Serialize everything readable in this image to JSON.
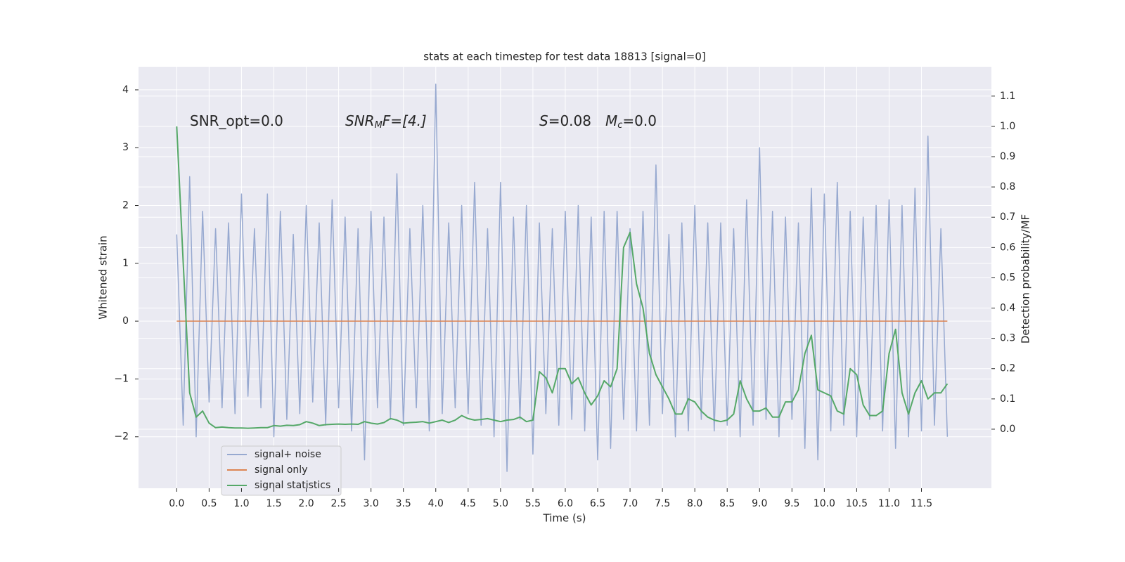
{
  "chart_data": {
    "type": "line",
    "title": "stats at each timestep for test data 18813 [signal=0]",
    "xlabel": "Time (s)",
    "ylabel": "Whitened strain",
    "y2label": "Detection probability/MF",
    "annotations": [
      [
        "SNR_opt=0.0"
      ],
      [
        "SNR",
        "M",
        "F=[4.]"
      ],
      [
        "S",
        "=0.08",
        "M",
        "c",
        "=0.0"
      ]
    ],
    "grid": true,
    "legend": "lower left",
    "xlim": [
      -0.59,
      12.58
    ],
    "ylim": [
      -2.89,
      4.4
    ],
    "y2lim": [
      -0.195,
      1.197
    ],
    "xticks": [
      {
        "value": 0,
        "label": "0.0"
      },
      {
        "value": 0.5,
        "label": "0.5"
      },
      {
        "value": 1,
        "label": "1.0"
      },
      {
        "value": 1.5,
        "label": "1.5"
      },
      {
        "value": 2,
        "label": "2.0"
      },
      {
        "value": 2.5,
        "label": "2.5"
      },
      {
        "value": 3,
        "label": "3.0"
      },
      {
        "value": 3.5,
        "label": "3.5"
      },
      {
        "value": 4,
        "label": "4.0"
      },
      {
        "value": 4.5,
        "label": "4.5"
      },
      {
        "value": 5,
        "label": "5.0"
      },
      {
        "value": 5.5,
        "label": "5.5"
      },
      {
        "value": 6,
        "label": "6.0"
      },
      {
        "value": 6.5,
        "label": "6.5"
      },
      {
        "value": 7,
        "label": "7.0"
      },
      {
        "value": 7.5,
        "label": "7.5"
      },
      {
        "value": 8,
        "label": "8.0"
      },
      {
        "value": 8.5,
        "label": "8.5"
      },
      {
        "value": 9,
        "label": "9.0"
      },
      {
        "value": 9.5,
        "label": "9.5"
      },
      {
        "value": 10,
        "label": "10.0"
      },
      {
        "value": 10.5,
        "label": "10.5"
      },
      {
        "value": 11,
        "label": "11.0"
      },
      {
        "value": 11.5,
        "label": "11.5"
      }
    ],
    "yticks": [
      {
        "value": -2,
        "label": "−2"
      },
      {
        "value": -1,
        "label": "−1"
      },
      0,
      1,
      2,
      3,
      4
    ],
    "y2ticks": [
      {
        "value": 0,
        "label": "0.0"
      },
      0.1,
      0.2,
      0.3,
      0.4,
      0.5,
      0.6,
      0.7,
      0.8,
      0.9,
      {
        "value": 1,
        "label": "1.0"
      },
      1.1
    ],
    "x": [
      0.0,
      0.1,
      0.2,
      0.3,
      0.4,
      0.5,
      0.6,
      0.7,
      0.8,
      0.9,
      1.0,
      1.1,
      1.2,
      1.3,
      1.4,
      1.5,
      1.6,
      1.7,
      1.8,
      1.9,
      2.0,
      2.1,
      2.2,
      2.3,
      2.4,
      2.5,
      2.6,
      2.7,
      2.8,
      2.9,
      3.0,
      3.1,
      3.2,
      3.3,
      3.4,
      3.5,
      3.6,
      3.7,
      3.8,
      3.9,
      4.0,
      4.1,
      4.2,
      4.3,
      4.4,
      4.5,
      4.6,
      4.7,
      4.8,
      4.9,
      5.0,
      5.1,
      5.2,
      5.3,
      5.4,
      5.5,
      5.6,
      5.7,
      5.8,
      5.9,
      6.0,
      6.1,
      6.2,
      6.3,
      6.4,
      6.5,
      6.6,
      6.7,
      6.8,
      6.9,
      7.0,
      7.1,
      7.2,
      7.3,
      7.4,
      7.5,
      7.6,
      7.7,
      7.8,
      7.9,
      8.0,
      8.1,
      8.2,
      8.3,
      8.4,
      8.5,
      8.6,
      8.7,
      8.8,
      8.9,
      9.0,
      9.1,
      9.2,
      9.3,
      9.4,
      9.5,
      9.6,
      9.7,
      9.8,
      9.9,
      10.0,
      10.1,
      10.2,
      10.3,
      10.4,
      10.5,
      10.6,
      10.7,
      10.8,
      10.9,
      11.0,
      11.1,
      11.2,
      11.3,
      11.4,
      11.5,
      11.6,
      11.7,
      11.8,
      11.9
    ],
    "series": [
      {
        "name": "signal+ noise",
        "color": "#97a9d0",
        "values": [
          1.5,
          -1.8,
          2.5,
          -2.0,
          1.9,
          -1.4,
          1.6,
          -1.5,
          1.7,
          -1.6,
          2.2,
          -1.3,
          1.6,
          -1.5,
          2.2,
          -2.0,
          1.9,
          -1.7,
          1.5,
          -1.6,
          2.0,
          -1.4,
          1.7,
          -1.8,
          2.1,
          -1.5,
          1.8,
          -1.9,
          1.6,
          -2.4,
          1.9,
          -1.5,
          1.8,
          -1.7,
          2.55,
          -1.8,
          1.6,
          -1.5,
          2.0,
          -1.9,
          4.1,
          -1.6,
          1.7,
          -1.5,
          2.0,
          -1.6,
          2.4,
          -1.8,
          1.6,
          -2.0,
          2.4,
          -2.6,
          1.8,
          -1.7,
          2.0,
          -2.3,
          1.7,
          -1.6,
          1.6,
          -1.8,
          1.9,
          -1.7,
          2.0,
          -1.9,
          1.8,
          -2.4,
          1.9,
          -2.2,
          1.9,
          -1.7,
          1.6,
          -1.9,
          1.9,
          -1.8,
          2.7,
          -1.6,
          1.5,
          -2.0,
          1.7,
          -1.9,
          2.0,
          -1.7,
          1.7,
          -1.9,
          1.7,
          -1.8,
          1.6,
          -2.0,
          2.1,
          -1.8,
          3.0,
          -1.7,
          1.9,
          -2.0,
          1.8,
          -1.7,
          1.7,
          -2.2,
          2.3,
          -2.4,
          2.2,
          -1.9,
          2.4,
          -1.8,
          1.9,
          -2.0,
          1.8,
          -1.7,
          2.0,
          -1.9,
          2.1,
          -2.2,
          2.0,
          -2.0,
          2.3,
          -1.9,
          3.2,
          -1.8,
          1.6,
          -2.0
        ]
      },
      {
        "name": "signal only",
        "color": "#dd8452",
        "x": [
          0.0,
          11.9
        ],
        "values": [
          0,
          0
        ]
      },
      {
        "name": "signal statistics",
        "color": "#55a868",
        "axis": "y2",
        "values": [
          1.0,
          0.55,
          0.12,
          0.04,
          0.06,
          0.02,
          0.005,
          0.007,
          0.005,
          0.004,
          0.004,
          0.003,
          0.004,
          0.005,
          0.005,
          0.012,
          0.01,
          0.013,
          0.012,
          0.015,
          0.025,
          0.02,
          0.012,
          0.015,
          0.016,
          0.017,
          0.016,
          0.017,
          0.016,
          0.025,
          0.02,
          0.017,
          0.022,
          0.035,
          0.03,
          0.02,
          0.022,
          0.023,
          0.025,
          0.02,
          0.025,
          0.03,
          0.022,
          0.03,
          0.045,
          0.035,
          0.03,
          0.032,
          0.035,
          0.03,
          0.025,
          0.03,
          0.032,
          0.04,
          0.025,
          0.03,
          0.19,
          0.17,
          0.12,
          0.2,
          0.2,
          0.15,
          0.17,
          0.12,
          0.08,
          0.11,
          0.16,
          0.14,
          0.2,
          0.6,
          0.65,
          0.48,
          0.4,
          0.25,
          0.18,
          0.14,
          0.1,
          0.05,
          0.05,
          0.1,
          0.09,
          0.06,
          0.04,
          0.03,
          0.025,
          0.03,
          0.05,
          0.16,
          0.1,
          0.06,
          0.06,
          0.07,
          0.04,
          0.04,
          0.09,
          0.09,
          0.13,
          0.25,
          0.31,
          0.13,
          0.12,
          0.11,
          0.06,
          0.05,
          0.2,
          0.18,
          0.08,
          0.045,
          0.045,
          0.06,
          0.25,
          0.33,
          0.12,
          0.05,
          0.12,
          0.16,
          0.1,
          0.12,
          0.12,
          0.15
        ]
      }
    ]
  }
}
